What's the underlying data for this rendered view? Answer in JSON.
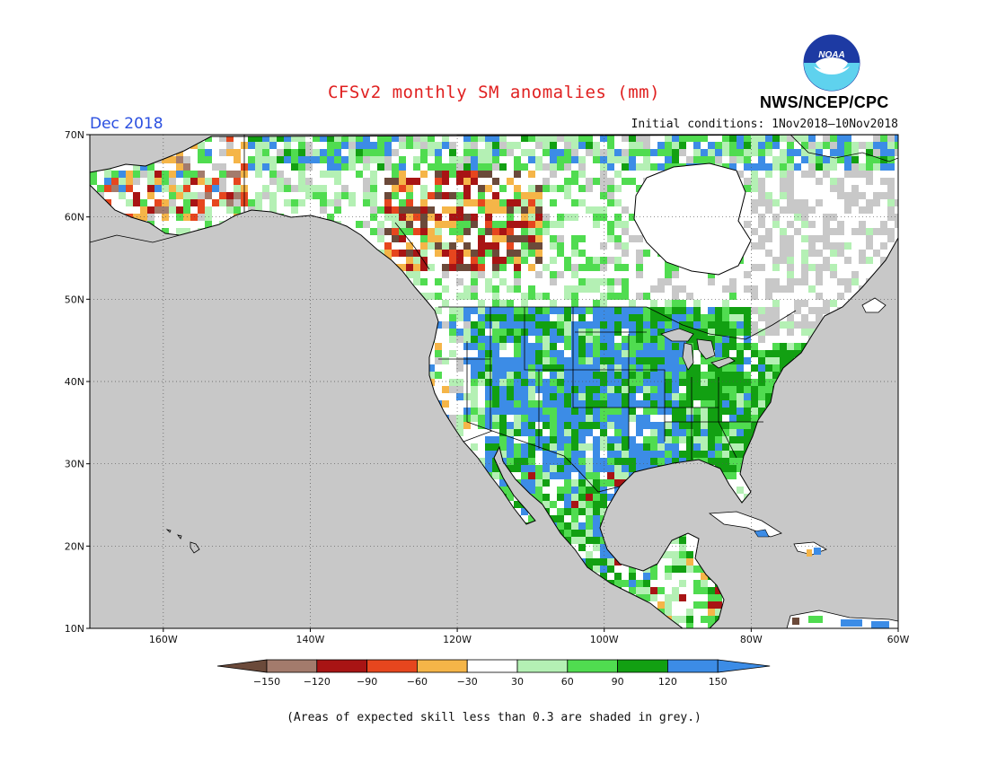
{
  "title": "CFSv2 monthly SM anomalies (mm)",
  "valid_month": "Dec 2018",
  "initial_conditions": "Initial conditions: 1Nov2018–10Nov2018",
  "agency": "NWS/NCEP/CPC",
  "logo_text": "NOAA",
  "skill_note": "(Areas of expected skill less than 0.3 are shaded in grey.)",
  "lat_labels": [
    "70N",
    "60N",
    "50N",
    "40N",
    "30N",
    "20N",
    "10N"
  ],
  "lon_labels": [
    "160W",
    "140W",
    "120W",
    "100W",
    "80W",
    "60W"
  ],
  "colorbar": {
    "tick_labels": [
      "−150",
      "−120",
      "−90",
      "−60",
      "−30",
      "30",
      "60",
      "90",
      "120",
      "150"
    ],
    "bin_colors": [
      "#6b4a3a",
      "#a37b6c",
      "#a81414",
      "#e6461e",
      "#f5b548",
      "#ffffff",
      "#b4f0b4",
      "#50dc50",
      "#12a012",
      "#3c8ce6",
      "#3c8ce6"
    ]
  },
  "colors": {
    "ocean": "#c8c8c8",
    "low_skill_land": "#c8c8c8",
    "near_normal_land": "#ffffff",
    "coast": "#000000",
    "title": "#e02020",
    "month": "#2a4fe0"
  },
  "region_anomalies": [
    {
      "region": "Alaska",
      "class": "mixed -90 to +30"
    },
    {
      "region": "Western Canada",
      "class": "dry -150 to -90 patches"
    },
    {
      "region": "Northern Plains",
      "class": "wet 120 to 150"
    },
    {
      "region": "Texas / Southern Plains",
      "class": "wet 120 to 150"
    },
    {
      "region": "Eastern US",
      "class": "wet 90 to 120"
    },
    {
      "region": "Mexico",
      "class": "wet 60 to 150"
    },
    {
      "region": "Eastern Canada / Quebec",
      "class": "low skill (grey) and near normal"
    }
  ]
}
